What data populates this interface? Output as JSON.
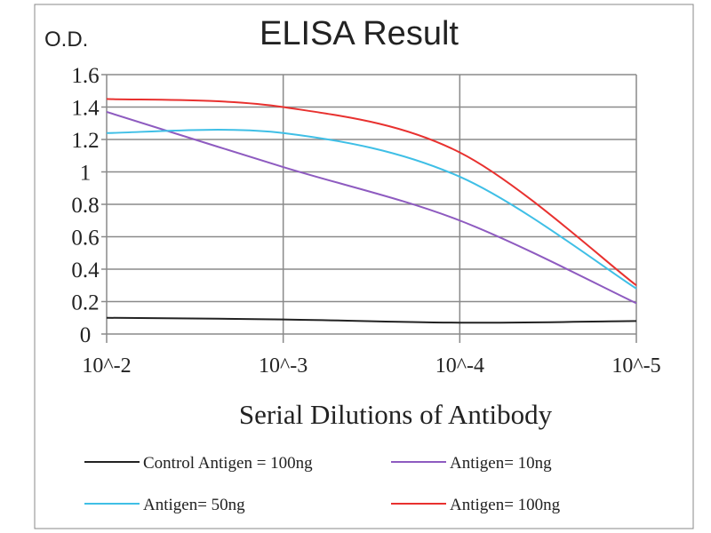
{
  "chart_data": {
    "type": "line",
    "title": "ELISA Result",
    "ylabel": "O.D.",
    "xlabel": "Serial Dilutions  of Antibody",
    "categories": [
      "10^-2",
      "10^-3",
      "10^-4",
      "10^-5"
    ],
    "ylim": [
      0,
      1.6
    ],
    "yticks": [
      "0",
      "0.2",
      "0.4",
      "0.6",
      "0.8",
      "1",
      "1.2",
      "1.4",
      "1.6"
    ],
    "grid": true,
    "legend_position": "bottom",
    "series": [
      {
        "name": "Control Antigen = 100ng",
        "color": "#222222",
        "values": [
          0.1,
          0.09,
          0.07,
          0.08
        ]
      },
      {
        "name": "Antigen= 10ng",
        "color": "#8e5bc0",
        "values": [
          1.37,
          1.03,
          0.7,
          0.19
        ]
      },
      {
        "name": "Antigen= 50ng",
        "color": "#3fbfe6",
        "values": [
          1.24,
          1.24,
          0.97,
          0.28
        ]
      },
      {
        "name": "Antigen= 100ng",
        "color": "#e8312f",
        "values": [
          1.45,
          1.4,
          1.12,
          0.3
        ]
      }
    ]
  }
}
